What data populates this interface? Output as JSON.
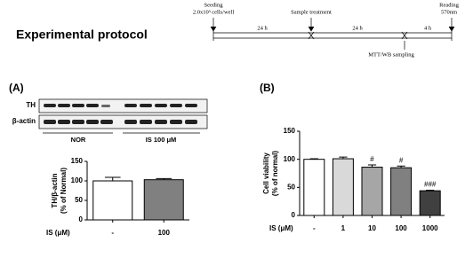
{
  "protocol": {
    "title": "Experimental protocol",
    "steps": [
      {
        "label": "Seeding",
        "detail": "2.0x10³ cells/well"
      },
      {
        "label": "Sample treatment"
      },
      {
        "label": "MTT/WB sampling"
      },
      {
        "label": "Reading",
        "detail": "570nm"
      }
    ],
    "intervals": [
      "24 h",
      "24 h",
      "4 h"
    ]
  },
  "panel_a": {
    "label": "(A)",
    "blot_rows": [
      "TH",
      "β-actin"
    ],
    "groups": [
      "NOR",
      "IS 100 μM"
    ]
  },
  "panel_b": {
    "label": "(B)"
  },
  "chart_data": [
    {
      "type": "bar",
      "ylabel": [
        "TH/β-actin",
        "(% of Normal)"
      ],
      "xlabel": "IS (μM)",
      "categories": [
        "-",
        "100"
      ],
      "values": [
        100,
        103
      ],
      "errors": [
        9,
        3
      ],
      "colors": [
        "#ffffff",
        "#808080"
      ],
      "ylim": [
        0,
        150
      ],
      "yticks": [
        0,
        50,
        100,
        150
      ]
    },
    {
      "type": "bar",
      "ylabel": [
        "Cell viability",
        "(% of normal)"
      ],
      "xlabel": "IS (μM)",
      "categories": [
        "-",
        "1",
        "10",
        "100",
        "1000"
      ],
      "values": [
        100,
        101,
        86,
        85,
        44
      ],
      "errors": [
        1,
        3,
        4,
        3,
        1
      ],
      "colors": [
        "#ffffff",
        "#d9d9d9",
        "#a6a6a6",
        "#808080",
        "#404040"
      ],
      "annotations": [
        null,
        null,
        "#",
        "#",
        "###"
      ],
      "ylim": [
        0,
        150
      ],
      "yticks": [
        0,
        50,
        100,
        150
      ]
    }
  ]
}
